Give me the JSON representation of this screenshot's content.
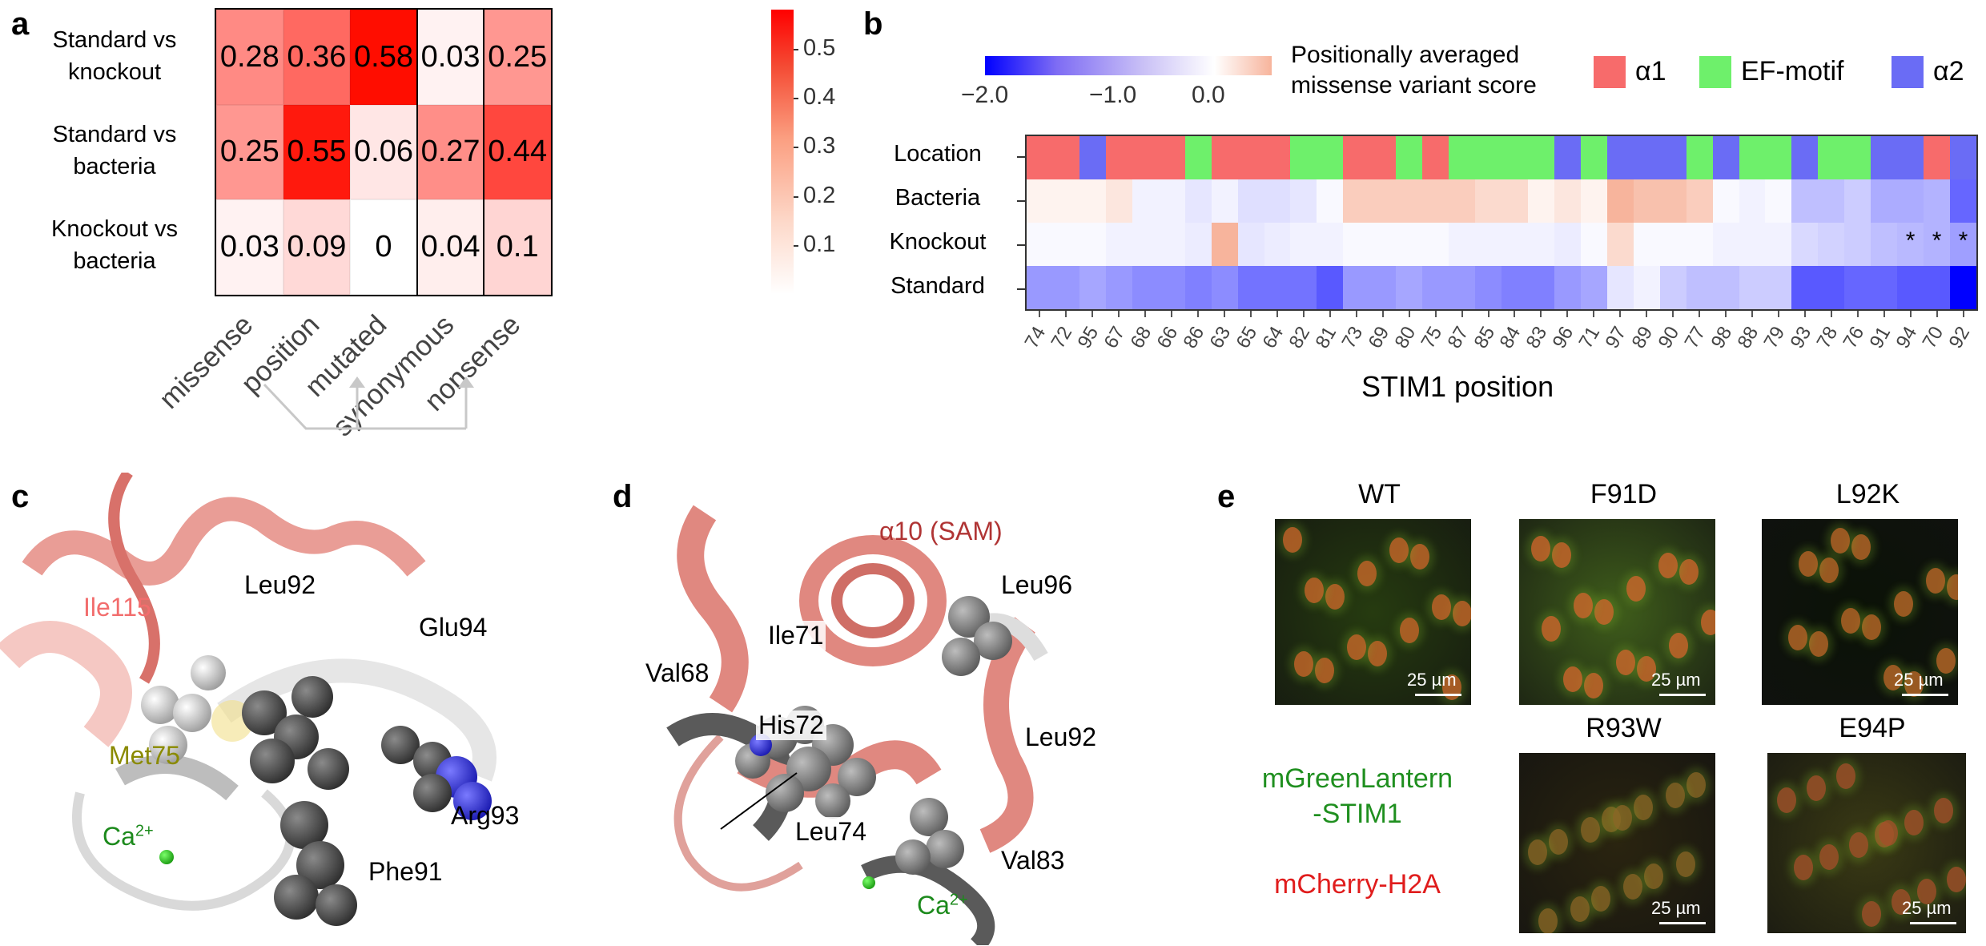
{
  "panel_a": {
    "letter": "a",
    "rows": [
      "Standard vs\nknockout",
      "Standard vs\nbacteria",
      "Knockout vs\nbacteria"
    ],
    "row_line1": [
      "Standard vs",
      "Standard vs",
      "Knockout vs"
    ],
    "row_line2": [
      "knockout",
      "bacteria",
      "bacteria"
    ],
    "columns": [
      "missense",
      "position",
      "mutated",
      "synonymous",
      "nonsense"
    ],
    "cell_labels": [
      [
        "0.28",
        "0.36",
        "0.58",
        "0.03",
        "0.25"
      ],
      [
        "0.25",
        "0.55",
        "0.06",
        "0.27",
        "0.44"
      ],
      [
        "0.03",
        "0.09",
        "0",
        "0.04",
        "0.1"
      ]
    ],
    "colorbar_ticks": [
      "0.5",
      "0.4",
      "0.3",
      "0.2",
      "0.1"
    ]
  },
  "chart_data": [
    {
      "type": "heatmap",
      "title": "",
      "rows": [
        "Standard vs knockout",
        "Standard vs bacteria",
        "Knockout vs bacteria"
      ],
      "columns": [
        "missense",
        "position",
        "mutated",
        "synonymous",
        "nonsense"
      ],
      "values": [
        [
          0.28,
          0.36,
          0.58,
          0.03,
          0.25
        ],
        [
          0.25,
          0.55,
          0.06,
          0.27,
          0.44
        ],
        [
          0.03,
          0.09,
          0,
          0.04,
          0.1
        ]
      ],
      "colorbar_range": [
        0,
        0.58
      ],
      "colorbar_ticks": [
        0.1,
        0.2,
        0.3,
        0.4,
        0.5
      ],
      "colors": {
        "low": "#ffffff",
        "high": "#ff0000"
      }
    },
    {
      "type": "heatmap",
      "title": "",
      "xlabel": "STIM1 position",
      "positions": [
        "74",
        "72",
        "95",
        "67",
        "68",
        "66",
        "86",
        "63",
        "65",
        "64",
        "82",
        "81",
        "73",
        "69",
        "80",
        "75",
        "87",
        "85",
        "84",
        "83",
        "96",
        "71",
        "97",
        "89",
        "90",
        "77",
        "98",
        "88",
        "79",
        "93",
        "78",
        "76",
        "91",
        "94",
        "70",
        "92"
      ],
      "rows": [
        "Location",
        "Bacteria",
        "Knockout",
        "Standard"
      ],
      "location": [
        "a1",
        "a1",
        "a2",
        "a1",
        "a1",
        "a1",
        "EF",
        "a1",
        "a1",
        "a1",
        "EF",
        "EF",
        "a1",
        "a1",
        "EF",
        "a1",
        "EF",
        "EF",
        "EF",
        "EF",
        "a2",
        "EF",
        "a2",
        "a2",
        "a2",
        "EF",
        "a2",
        "EF",
        "EF",
        "a2",
        "EF",
        "EF",
        "a2",
        "a2",
        "a1",
        "a2"
      ],
      "scores": {
        "Bacteria": [
          0.05,
          0.05,
          0.05,
          0.1,
          -0.1,
          -0.1,
          -0.2,
          -0.1,
          -0.25,
          -0.25,
          -0.2,
          -0.05,
          0.2,
          0.2,
          0.2,
          0.2,
          0.2,
          0.15,
          0.15,
          0.05,
          0.1,
          0.05,
          0.3,
          0.25,
          0.25,
          0.2,
          -0.05,
          -0.1,
          -0.05,
          -0.5,
          -0.5,
          -0.4,
          -0.65,
          -0.65,
          -0.6,
          -1.2
        ],
        "Knockout": [
          -0.05,
          -0.05,
          -0.05,
          -0.1,
          -0.1,
          -0.1,
          -0.15,
          0.3,
          -0.2,
          -0.15,
          -0.1,
          -0.1,
          -0.05,
          -0.05,
          -0.05,
          -0.05,
          -0.1,
          -0.1,
          -0.1,
          -0.1,
          -0.15,
          -0.05,
          0.15,
          -0.05,
          -0.05,
          -0.05,
          -0.1,
          -0.1,
          -0.1,
          -0.3,
          -0.35,
          -0.4,
          -0.5,
          -0.55,
          -0.6,
          -0.75
        ],
        "Standard": [
          -0.8,
          -0.8,
          -0.7,
          -0.8,
          -0.9,
          -0.9,
          -1.0,
          -0.9,
          -1.1,
          -1.1,
          -1.1,
          -1.3,
          -0.8,
          -0.8,
          -0.7,
          -0.8,
          -0.8,
          -0.9,
          -1.0,
          -1.0,
          -0.8,
          -0.7,
          -0.2,
          -0.1,
          -0.4,
          -0.5,
          -0.5,
          -0.4,
          -0.4,
          -1.3,
          -1.3,
          -1.2,
          -1.2,
          -1.3,
          -1.3,
          -2.0
        ]
      },
      "knockout_stars": [
        "94",
        "70",
        "92"
      ],
      "colorbar_range": [
        -2.0,
        0.3
      ],
      "colors": {
        "low": "#0000ff",
        "mid": "#ffffff",
        "high": "#f7b49c"
      }
    }
  ],
  "panel_b": {
    "letter": "b",
    "colorbar_ticks": [
      "−2.0",
      "−1.0",
      "0.0"
    ],
    "colorbar_title_1": "Positionally averaged",
    "colorbar_title_2": "missense variant score",
    "legend": [
      {
        "key": "a1",
        "label": "α1",
        "color": "#f76b6b"
      },
      {
        "key": "EF",
        "label": "EF-motif",
        "color": "#6ef06b"
      },
      {
        "key": "a2",
        "label": "α2",
        "color": "#6a6cf5"
      }
    ],
    "row_labels": [
      "Location",
      "Bacteria",
      "Knockout",
      "Standard"
    ],
    "xlabel": "STIM1 position",
    "star": "*"
  },
  "panel_c": {
    "letter": "c",
    "labels": {
      "ile115": "Ile115",
      "leu92": "Leu92",
      "glu94": "Glu94",
      "met75": "Met75",
      "ca": "Ca",
      "ca_sup": "2+",
      "arg93": "Arg93",
      "phe91": "Phe91"
    }
  },
  "panel_d": {
    "letter": "d",
    "labels": {
      "sam": "α10 (SAM)",
      "leu96": "Leu96",
      "ile71": "Ile71",
      "val68": "Val68",
      "his72": "His72",
      "leu92": "Leu92",
      "leu74": "Leu74",
      "val83": "Val83",
      "ca": "Ca",
      "ca_sup": "2+"
    }
  },
  "panel_e": {
    "letter": "e",
    "titles": [
      "WT",
      "F91D",
      "L92K",
      "R93W",
      "E94P"
    ],
    "scale": "25 µm",
    "legend_green_1": "mGreenLantern",
    "legend_green_2": "-STIM1",
    "legend_red": "mCherry-H2A"
  }
}
